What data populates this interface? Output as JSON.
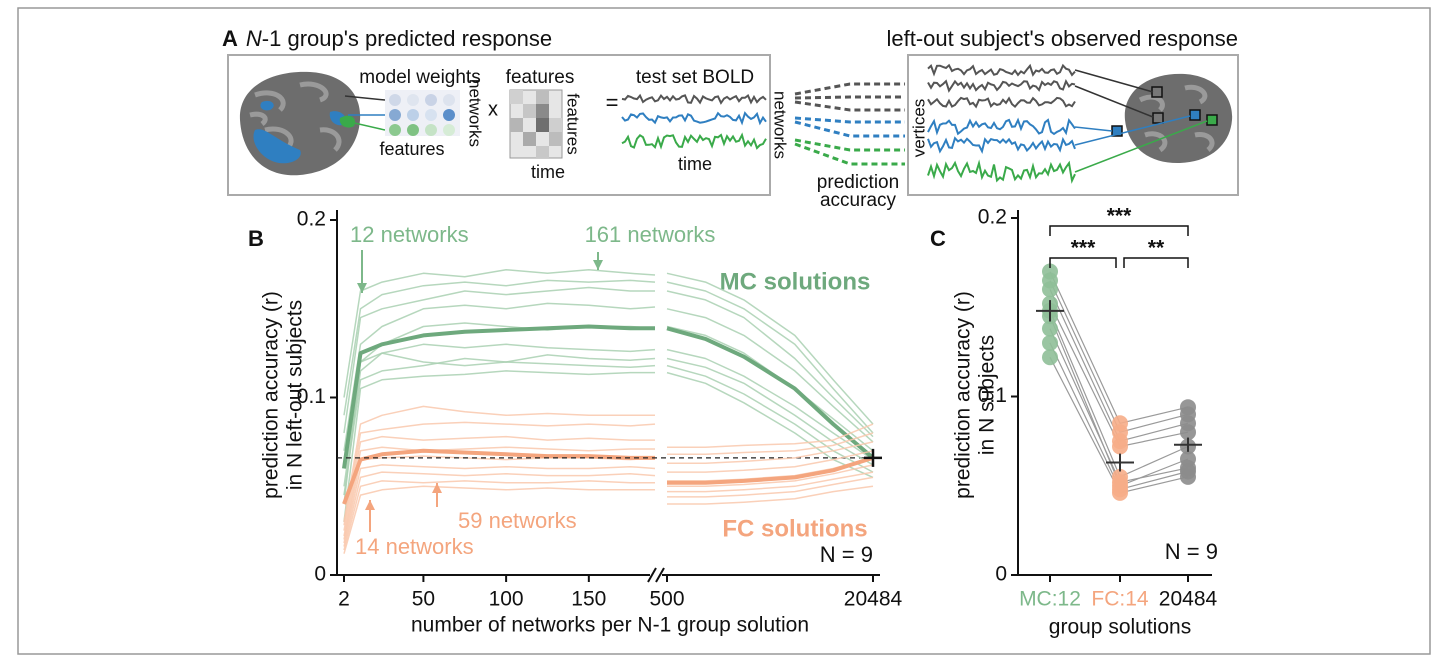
{
  "panel_a": {
    "label": "A",
    "title_italic": "N",
    "title_rest": "-1 group's predicted response",
    "right_title": "left-out subject's observed response",
    "model_weights": "model weights",
    "times": "x",
    "features_top": "features",
    "equals": "=",
    "bold": "test set BOLD",
    "networks_1": "networks",
    "features_bottom": "features",
    "features_side": "features",
    "time_1": "time",
    "time_2": "time",
    "networks_2": "networks",
    "accuracy": [
      "prediction",
      "accuracy"
    ],
    "vertices": "vertices"
  },
  "chart_data": [
    {
      "type": "line",
      "panel_label": "B",
      "ylabel": [
        "prediction accuracy (r)",
        "in N left-out subjects"
      ],
      "xlabel": "number of networks per N-1 group solution",
      "x": [
        2,
        12,
        25,
        50,
        75,
        100,
        125,
        150,
        175,
        190
      ],
      "xlim": [
        2,
        190
      ],
      "xticks": [
        2,
        50,
        100,
        150
      ],
      "ylim": [
        0,
        0.2
      ],
      "yticks": [
        0,
        0.1,
        0.2
      ],
      "series": [
        {
          "color": "#a9d0b1",
          "linewidth": 1.5,
          "values": [
            0.1,
            0.16,
            0.165,
            0.17,
            0.168,
            0.172,
            0.17,
            0.172,
            0.17,
            0.169
          ]
        },
        {
          "color": "#a9d0b1",
          "linewidth": 1.5,
          "values": [
            0.09,
            0.15,
            0.158,
            0.163,
            0.165,
            0.163,
            0.166,
            0.165,
            0.166,
            0.165
          ]
        },
        {
          "color": "#a9d0b1",
          "linewidth": 1.5,
          "values": [
            0.08,
            0.145,
            0.15,
            0.155,
            0.16,
            0.158,
            0.16,
            0.162,
            0.16,
            0.16
          ]
        },
        {
          "color": "#a9d0b1",
          "linewidth": 1.5,
          "values": [
            0.07,
            0.13,
            0.14,
            0.15,
            0.152,
            0.15,
            0.153,
            0.152,
            0.15,
            0.151
          ]
        },
        {
          "color": "#a9d0b1",
          "linewidth": 1.5,
          "values": [
            0.06,
            0.12,
            0.13,
            0.14,
            0.142,
            0.14,
            0.138,
            0.14,
            0.14,
            0.139
          ]
        },
        {
          "color": "#a9d0b1",
          "linewidth": 1.5,
          "values": [
            0.05,
            0.115,
            0.125,
            0.13,
            0.128,
            0.13,
            0.128,
            0.127,
            0.126,
            0.127
          ]
        },
        {
          "color": "#a9d0b1",
          "linewidth": 1.5,
          "values": [
            0.045,
            0.11,
            0.115,
            0.118,
            0.122,
            0.12,
            0.124,
            0.122,
            0.121,
            0.122
          ]
        },
        {
          "color": "#a9d0b1",
          "linewidth": 1.5,
          "values": [
            0.04,
            0.12,
            0.125,
            0.12,
            0.118,
            0.12,
            0.119,
            0.118,
            0.117,
            0.118
          ]
        },
        {
          "color": "#a9d0b1",
          "linewidth": 1.5,
          "values": [
            0.03,
            0.105,
            0.11,
            0.112,
            0.113,
            0.115,
            0.114,
            0.113,
            0.114,
            0.114
          ]
        },
        {
          "color": "#6ea97d",
          "linewidth": 4,
          "values": [
            0.06,
            0.125,
            0.13,
            0.135,
            0.137,
            0.138,
            0.139,
            0.14,
            0.139,
            0.139
          ]
        },
        {
          "color": "#f9c8ad",
          "linewidth": 1.5,
          "values": [
            0.03,
            0.085,
            0.09,
            0.095,
            0.092,
            0.09,
            0.091,
            0.09,
            0.09,
            0.09
          ]
        },
        {
          "color": "#f9c8ad",
          "linewidth": 1.5,
          "values": [
            0.028,
            0.08,
            0.082,
            0.085,
            0.086,
            0.085,
            0.084,
            0.085,
            0.084,
            0.085
          ]
        },
        {
          "color": "#f9c8ad",
          "linewidth": 1.5,
          "values": [
            0.025,
            0.075,
            0.078,
            0.076,
            0.077,
            0.078,
            0.076,
            0.077,
            0.076,
            0.076
          ]
        },
        {
          "color": "#f9c8ad",
          "linewidth": 1.5,
          "values": [
            0.022,
            0.07,
            0.072,
            0.07,
            0.071,
            0.072,
            0.071,
            0.07,
            0.071,
            0.071
          ]
        },
        {
          "color": "#f9c8ad",
          "linewidth": 1.5,
          "values": [
            0.02,
            0.065,
            0.066,
            0.067,
            0.066,
            0.065,
            0.066,
            0.066,
            0.065,
            0.066
          ]
        },
        {
          "color": "#f9c8ad",
          "linewidth": 1.5,
          "values": [
            0.018,
            0.06,
            0.062,
            0.061,
            0.06,
            0.061,
            0.06,
            0.06,
            0.061,
            0.06
          ]
        },
        {
          "color": "#f9c8ad",
          "linewidth": 1.5,
          "values": [
            0.016,
            0.055,
            0.058,
            0.057,
            0.056,
            0.057,
            0.056,
            0.056,
            0.057,
            0.056
          ]
        },
        {
          "color": "#f9c8ad",
          "linewidth": 1.5,
          "values": [
            0.014,
            0.05,
            0.053,
            0.052,
            0.053,
            0.052,
            0.052,
            0.053,
            0.052,
            0.052
          ]
        },
        {
          "color": "#f9c8ad",
          "linewidth": 1.5,
          "values": [
            0.012,
            0.045,
            0.048,
            0.05,
            0.049,
            0.048,
            0.049,
            0.048,
            0.048,
            0.048
          ]
        },
        {
          "color": "#f4a57e",
          "linewidth": 4,
          "values": [
            0.04,
            0.065,
            0.068,
            0.07,
            0.069,
            0.068,
            0.067,
            0.067,
            0.066,
            0.066
          ]
        }
      ],
      "annotations": [
        {
          "text": "12 networks",
          "color": "#7db88a"
        },
        {
          "text": "161 networks",
          "color": "#7db88a"
        },
        {
          "text": "MC solutions",
          "color": "#6ea97d"
        },
        {
          "text": "14 networks",
          "color": "#f4a57e"
        },
        {
          "text": "59 networks",
          "color": "#f4a57e"
        },
        {
          "text": "FC solutions",
          "color": "#f4a57e"
        },
        {
          "text": "N = 9",
          "color": "#111111"
        }
      ]
    },
    {
      "type": "line",
      "xscale": "log",
      "x": [
        500,
        1000,
        2000,
        5000,
        10000,
        20484
      ],
      "xlim": [
        500,
        20484
      ],
      "xticks": [
        500,
        20484
      ],
      "ylim": [
        0,
        0.2
      ],
      "reference": 0.066,
      "series": [
        {
          "color": "#a9d0b1",
          "linewidth": 1.5,
          "values": [
            0.17,
            0.165,
            0.155,
            0.135,
            0.11,
            0.085
          ]
        },
        {
          "color": "#a9d0b1",
          "linewidth": 1.5,
          "values": [
            0.165,
            0.16,
            0.15,
            0.13,
            0.105,
            0.08
          ]
        },
        {
          "color": "#a9d0b1",
          "linewidth": 1.5,
          "values": [
            0.16,
            0.155,
            0.145,
            0.122,
            0.1,
            0.078
          ]
        },
        {
          "color": "#a9d0b1",
          "linewidth": 1.5,
          "values": [
            0.15,
            0.145,
            0.135,
            0.115,
            0.095,
            0.075
          ]
        },
        {
          "color": "#a9d0b1",
          "linewidth": 1.5,
          "values": [
            0.14,
            0.135,
            0.125,
            0.105,
            0.088,
            0.07
          ]
        },
        {
          "color": "#a9d0b1",
          "linewidth": 1.5,
          "values": [
            0.127,
            0.122,
            0.112,
            0.095,
            0.08,
            0.065
          ]
        },
        {
          "color": "#a9d0b1",
          "linewidth": 1.5,
          "values": [
            0.122,
            0.117,
            0.108,
            0.09,
            0.075,
            0.062
          ]
        },
        {
          "color": "#a9d0b1",
          "linewidth": 1.5,
          "values": [
            0.118,
            0.112,
            0.102,
            0.085,
            0.07,
            0.058
          ]
        },
        {
          "color": "#a9d0b1",
          "linewidth": 1.5,
          "values": [
            0.114,
            0.108,
            0.097,
            0.08,
            0.065,
            0.055
          ]
        },
        {
          "color": "#6ea97d",
          "linewidth": 4,
          "values": [
            0.139,
            0.133,
            0.123,
            0.105,
            0.085,
            0.066
          ]
        },
        {
          "color": "#f9c8ad",
          "linewidth": 1.5,
          "values": [
            0.072,
            0.072,
            0.073,
            0.074,
            0.076,
            0.085
          ]
        },
        {
          "color": "#f9c8ad",
          "linewidth": 1.5,
          "values": [
            0.068,
            0.068,
            0.069,
            0.07,
            0.073,
            0.08
          ]
        },
        {
          "color": "#f9c8ad",
          "linewidth": 1.5,
          "values": [
            0.063,
            0.063,
            0.064,
            0.066,
            0.07,
            0.075
          ]
        },
        {
          "color": "#f9c8ad",
          "linewidth": 1.5,
          "values": [
            0.058,
            0.058,
            0.059,
            0.061,
            0.065,
            0.07
          ]
        },
        {
          "color": "#f9c8ad",
          "linewidth": 1.5,
          "values": [
            0.053,
            0.053,
            0.054,
            0.056,
            0.06,
            0.066
          ]
        },
        {
          "color": "#f9c8ad",
          "linewidth": 1.5,
          "values": [
            0.05,
            0.05,
            0.051,
            0.053,
            0.057,
            0.062
          ]
        },
        {
          "color": "#f9c8ad",
          "linewidth": 1.5,
          "values": [
            0.047,
            0.047,
            0.048,
            0.05,
            0.054,
            0.058
          ]
        },
        {
          "color": "#f9c8ad",
          "linewidth": 1.5,
          "values": [
            0.044,
            0.044,
            0.045,
            0.047,
            0.051,
            0.055
          ]
        },
        {
          "color": "#f9c8ad",
          "linewidth": 1.5,
          "values": [
            0.04,
            0.04,
            0.041,
            0.043,
            0.047,
            0.05
          ]
        },
        {
          "color": "#f4a57e",
          "linewidth": 4,
          "values": [
            0.052,
            0.052,
            0.053,
            0.055,
            0.059,
            0.066
          ]
        }
      ]
    },
    {
      "type": "paired-dot",
      "panel_label": "C",
      "ylabel": [
        "prediction accuracy (r)",
        "in N subjects"
      ],
      "xlabel": "group solutions",
      "categories": [
        "MC:12",
        "FC:14",
        "20484"
      ],
      "category_colors": [
        "#7db88a",
        "#f4a57e",
        "#111111"
      ],
      "point_colors": [
        "#8fbf98",
        "#f6ad88",
        "#8c8c8c"
      ],
      "ylim": [
        0,
        0.2
      ],
      "yticks": [
        0,
        0.1,
        0.2
      ],
      "series": [
        {
          "values": [
            0.17,
            0.085,
            0.094
          ]
        },
        {
          "values": [
            0.165,
            0.08,
            0.09
          ]
        },
        {
          "values": [
            0.16,
            0.075,
            0.085
          ]
        },
        {
          "values": [
            0.152,
            0.072,
            0.08
          ]
        },
        {
          "values": [
            0.148,
            0.055,
            0.072
          ]
        },
        {
          "values": [
            0.145,
            0.05,
            0.065
          ]
        },
        {
          "values": [
            0.138,
            0.052,
            0.06
          ]
        },
        {
          "values": [
            0.13,
            0.048,
            0.058
          ]
        },
        {
          "values": [
            0.122,
            0.046,
            0.055
          ]
        }
      ],
      "means": [
        0.148,
        0.063,
        0.073
      ],
      "errors": [
        0.006,
        0.005,
        0.004
      ],
      "brackets": [
        "***",
        "***",
        "**"
      ],
      "annotation": "N = 9"
    }
  ]
}
